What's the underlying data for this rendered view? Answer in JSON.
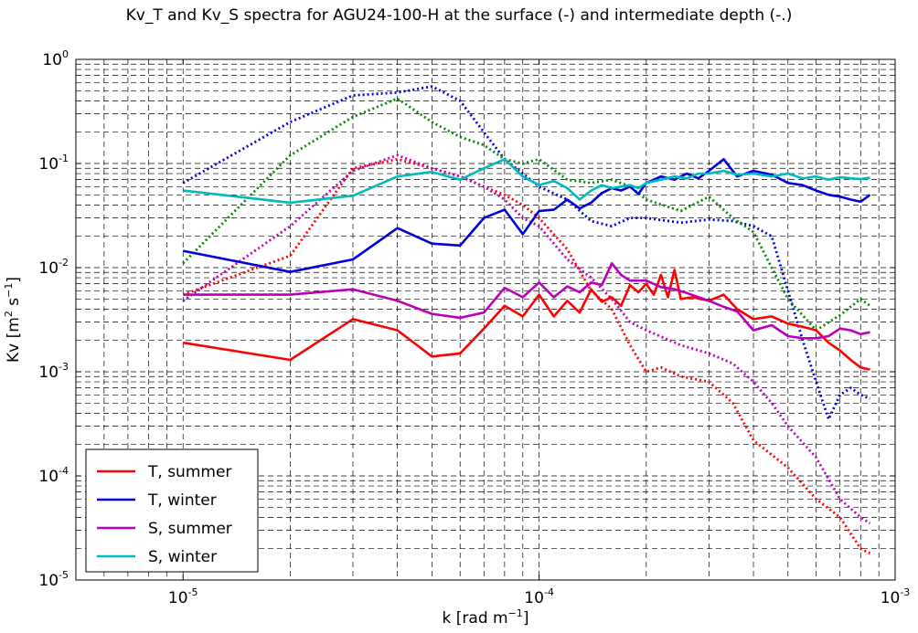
{
  "chart_data": {
    "type": "line",
    "title": "Kv_T and Kv_S spectra for AGU24-100-H at the surface (-) and intermediate depth (-.)",
    "xlabel_main": "k [rad m",
    "xlabel_exp": "−1",
    "xlabel_tail": "]",
    "ylabel_main": "Kv [m",
    "ylabel_exp1": "2",
    "ylabel_mid": " s",
    "ylabel_exp2": "−1",
    "ylabel_tail": "]",
    "xscale": "log",
    "yscale": "log",
    "xlim": [
      5e-06,
      0.001
    ],
    "ylim": [
      1e-05,
      1
    ],
    "grid": true,
    "legend_position": "lower-left",
    "x_ticks": [
      {
        "value": 1e-05,
        "base": "10",
        "exp": "-5"
      },
      {
        "value": 0.0001,
        "base": "10",
        "exp": "-4"
      },
      {
        "value": 0.001,
        "base": "10",
        "exp": "-3"
      }
    ],
    "y_ticks": [
      {
        "value": 1e-05,
        "base": "10",
        "exp": "-5"
      },
      {
        "value": 0.0001,
        "base": "10",
        "exp": "-4"
      },
      {
        "value": 0.001,
        "base": "10",
        "exp": "-3"
      },
      {
        "value": 0.01,
        "base": "10",
        "exp": "-2"
      },
      {
        "value": 0.1,
        "base": "10",
        "exp": "-1"
      },
      {
        "value": 1,
        "base": "10",
        "exp": "0"
      }
    ],
    "series": [
      {
        "name": "T, summer",
        "color": "#ff0000",
        "style": "solid",
        "legend": true,
        "x": [
          1e-05,
          2e-05,
          3e-05,
          4e-05,
          5e-05,
          6e-05,
          7e-05,
          8e-05,
          9e-05,
          0.0001,
          0.00011,
          0.00012,
          0.00013,
          0.00014,
          0.00015,
          0.00016,
          0.00017,
          0.00018,
          0.00019,
          0.0002,
          0.00021,
          0.00022,
          0.00023,
          0.00024,
          0.00025,
          0.00027,
          0.0003,
          0.00033,
          0.00036,
          0.0004,
          0.00045,
          0.0005,
          0.00055,
          0.0006,
          0.00065,
          0.0007,
          0.00075,
          0.0008,
          0.00085
        ],
        "y": [
          0.0019,
          0.0013,
          0.0032,
          0.0025,
          0.0014,
          0.0015,
          0.0026,
          0.0043,
          0.0034,
          0.0055,
          0.0034,
          0.0048,
          0.0037,
          0.0062,
          0.0047,
          0.0052,
          0.0043,
          0.0068,
          0.0058,
          0.007,
          0.0055,
          0.0085,
          0.0052,
          0.0095,
          0.005,
          0.0052,
          0.0048,
          0.0055,
          0.004,
          0.0032,
          0.0034,
          0.0029,
          0.0027,
          0.0025,
          0.0019,
          0.0016,
          0.0013,
          0.0011,
          0.00105
        ]
      },
      {
        "name": "T, winter",
        "color": "#0000dd",
        "style": "solid",
        "legend": true,
        "x": [
          1e-05,
          2e-05,
          3e-05,
          4e-05,
          5e-05,
          6e-05,
          7e-05,
          8e-05,
          9e-05,
          0.0001,
          0.00011,
          0.00012,
          0.00013,
          0.00014,
          0.00015,
          0.00016,
          0.00017,
          0.00018,
          0.00019,
          0.0002,
          0.00022,
          0.00024,
          0.00026,
          0.00028,
          0.0003,
          0.00033,
          0.00036,
          0.0004,
          0.00045,
          0.0005,
          0.00055,
          0.0006,
          0.00065,
          0.0007,
          0.00075,
          0.0008,
          0.00085
        ],
        "y": [
          0.0145,
          0.0091,
          0.012,
          0.024,
          0.017,
          0.0163,
          0.03,
          0.036,
          0.021,
          0.035,
          0.036,
          0.045,
          0.037,
          0.042,
          0.052,
          0.058,
          0.055,
          0.06,
          0.051,
          0.065,
          0.075,
          0.07,
          0.08,
          0.072,
          0.085,
          0.11,
          0.075,
          0.085,
          0.078,
          0.065,
          0.062,
          0.055,
          0.05,
          0.048,
          0.045,
          0.043,
          0.05
        ]
      },
      {
        "name": "S, summer",
        "color": "#bb00bb",
        "style": "solid",
        "legend": true,
        "x": [
          1e-05,
          2e-05,
          3e-05,
          4e-05,
          5e-05,
          6e-05,
          7e-05,
          8e-05,
          9e-05,
          0.0001,
          0.00011,
          0.00012,
          0.00013,
          0.00014,
          0.00015,
          0.00016,
          0.00017,
          0.00018,
          0.0002,
          0.00022,
          0.00024,
          0.00026,
          0.0003,
          0.00033,
          0.00036,
          0.0004,
          0.00045,
          0.0005,
          0.00055,
          0.0006,
          0.00065,
          0.0007,
          0.00075,
          0.0008,
          0.00085
        ],
        "y": [
          0.0055,
          0.0055,
          0.0062,
          0.0048,
          0.0036,
          0.0033,
          0.0037,
          0.0064,
          0.0052,
          0.0072,
          0.0052,
          0.0066,
          0.0058,
          0.0072,
          0.0068,
          0.011,
          0.0085,
          0.0075,
          0.0075,
          0.0065,
          0.0062,
          0.0057,
          0.0048,
          0.0042,
          0.0038,
          0.0025,
          0.0028,
          0.0022,
          0.0021,
          0.0021,
          0.0022,
          0.0026,
          0.0025,
          0.0023,
          0.0024
        ]
      },
      {
        "name": "S, winter",
        "color": "#00bbbb",
        "style": "solid",
        "legend": true,
        "x": [
          1e-05,
          2e-05,
          3e-05,
          4e-05,
          5e-05,
          6e-05,
          7e-05,
          8e-05,
          9e-05,
          0.0001,
          0.00011,
          0.00012,
          0.00013,
          0.00014,
          0.00015,
          0.00016,
          0.00017,
          0.00018,
          0.00019,
          0.0002,
          0.00022,
          0.00024,
          0.00026,
          0.00028,
          0.0003,
          0.00033,
          0.00036,
          0.0004,
          0.00045,
          0.0005,
          0.00055,
          0.0006,
          0.00065,
          0.0007,
          0.00075,
          0.0008,
          0.00085
        ],
        "y": [
          0.055,
          0.042,
          0.049,
          0.075,
          0.083,
          0.07,
          0.09,
          0.11,
          0.075,
          0.062,
          0.068,
          0.058,
          0.045,
          0.055,
          0.062,
          0.058,
          0.06,
          0.062,
          0.058,
          0.065,
          0.07,
          0.075,
          0.072,
          0.08,
          0.08,
          0.085,
          0.078,
          0.08,
          0.075,
          0.08,
          0.072,
          0.075,
          0.07,
          0.074,
          0.072,
          0.071,
          0.073
        ]
      },
      {
        "name": "T, summer (intermediate)",
        "color": "#ff0000",
        "style": "dashdot",
        "legend": false,
        "x": [
          1e-05,
          2e-05,
          3e-05,
          4e-05,
          5e-05,
          6e-05,
          7e-05,
          8e-05,
          9e-05,
          0.0001,
          0.00012,
          0.00014,
          0.00016,
          0.00018,
          0.0002,
          0.00022,
          0.00025,
          0.0003,
          0.00035,
          0.0004,
          0.0005,
          0.0006,
          0.0007,
          0.0008,
          0.00085
        ],
        "y": [
          0.0055,
          0.013,
          0.09,
          0.11,
          0.09,
          0.075,
          0.06,
          0.05,
          0.04,
          0.03,
          0.015,
          0.006,
          0.004,
          0.0018,
          0.001,
          0.0011,
          0.0009,
          0.0008,
          0.0005,
          0.00022,
          0.00012,
          6e-05,
          4e-05,
          2e-05,
          1.8e-05
        ]
      },
      {
        "name": "T, winter (intermediate)",
        "color": "#0000dd",
        "style": "dashdot",
        "legend": false,
        "x": [
          1e-05,
          2e-05,
          3e-05,
          4e-05,
          5e-05,
          6e-05,
          7e-05,
          8e-05,
          9e-05,
          0.0001,
          0.00012,
          0.00014,
          0.00016,
          0.00018,
          0.0002,
          0.00025,
          0.0003,
          0.00035,
          0.0004,
          0.00045,
          0.0005,
          0.00055,
          0.0006,
          0.00065,
          0.0007,
          0.00075,
          0.0008,
          0.00085
        ],
        "y": [
          0.065,
          0.25,
          0.45,
          0.48,
          0.55,
          0.4,
          0.2,
          0.11,
          0.08,
          0.06,
          0.045,
          0.028,
          0.025,
          0.03,
          0.03,
          0.027,
          0.029,
          0.028,
          0.025,
          0.02,
          0.006,
          0.002,
          0.0008,
          0.00035,
          0.0006,
          0.0007,
          0.0006,
          0.00055
        ]
      },
      {
        "name": "S, summer (intermediate)",
        "color": "#bb00bb",
        "style": "dashdot",
        "legend": false,
        "x": [
          1e-05,
          2e-05,
          3e-05,
          4e-05,
          5e-05,
          6e-05,
          7e-05,
          8e-05,
          9e-05,
          0.0001,
          0.00012,
          0.00014,
          0.00016,
          0.00018,
          0.0002,
          0.00025,
          0.0003,
          0.00035,
          0.0004,
          0.00045,
          0.0005,
          0.0006,
          0.0007,
          0.0008,
          0.00085
        ],
        "y": [
          0.0048,
          0.025,
          0.085,
          0.12,
          0.09,
          0.075,
          0.06,
          0.045,
          0.03,
          0.025,
          0.012,
          0.008,
          0.005,
          0.003,
          0.0025,
          0.0018,
          0.0015,
          0.0012,
          0.0008,
          0.0005,
          0.0003,
          0.00015,
          6e-05,
          4e-05,
          3.5e-05
        ]
      },
      {
        "name": "S, winter (intermediate)",
        "color": "#008800",
        "style": "dashdot",
        "legend": false,
        "x": [
          1e-05,
          2e-05,
          3e-05,
          4e-05,
          5e-05,
          6e-05,
          7e-05,
          8e-05,
          9e-05,
          0.0001,
          0.00012,
          0.00014,
          0.00016,
          0.00018,
          0.0002,
          0.00025,
          0.0003,
          0.00035,
          0.0004,
          0.00045,
          0.0005,
          0.0006,
          0.0007,
          0.0008,
          0.00085
        ],
        "y": [
          0.011,
          0.12,
          0.28,
          0.42,
          0.25,
          0.18,
          0.15,
          0.11,
          0.1,
          0.11,
          0.07,
          0.065,
          0.07,
          0.06,
          0.045,
          0.035,
          0.048,
          0.03,
          0.022,
          0.01,
          0.005,
          0.0025,
          0.0035,
          0.005,
          0.0043
        ]
      }
    ]
  }
}
